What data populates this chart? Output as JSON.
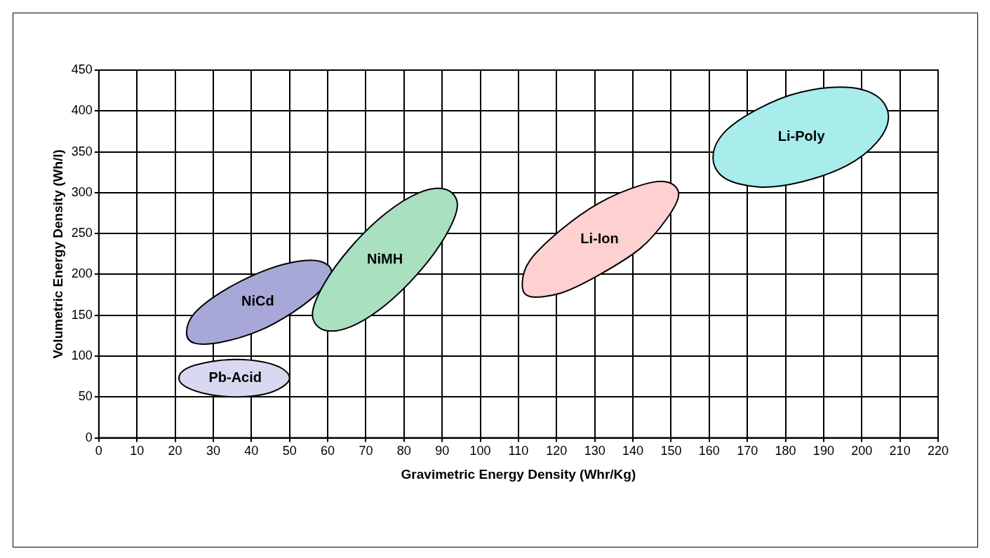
{
  "chart_data": {
    "type": "area",
    "xlabel": "Gravimetric Energy Density (Whr/Kg)",
    "ylabel": "Volumetric Energy Density (Wh/l)",
    "xlim": [
      0,
      220
    ],
    "xticks": [
      0,
      10,
      20,
      30,
      40,
      50,
      60,
      70,
      80,
      90,
      100,
      110,
      120,
      130,
      140,
      150,
      160,
      170,
      180,
      190,
      200,
      210,
      220
    ],
    "ylim": [
      0,
      450
    ],
    "yticks": [
      0,
      50,
      100,
      150,
      200,
      250,
      300,
      350,
      400,
      450
    ],
    "grid": true,
    "legend": false,
    "marker": "none",
    "series": [
      {
        "name": "Pb-Acid",
        "color": "#d8d8f0",
        "x": [
          50,
          48,
          43,
          36,
          29,
          23,
          21,
          23,
          29,
          36,
          43,
          48
        ],
        "values": [
          73,
          85,
          93,
          96,
          93,
          85,
          73,
          62,
          53,
          50,
          53,
          62
        ]
      },
      {
        "name": "NiCd",
        "color": "#a8a8d8",
        "x": [
          61,
          58,
          51,
          42,
          32,
          25,
          23,
          25,
          32,
          42,
          51,
          58
        ],
        "values": [
          203,
          180,
          154,
          131,
          117,
          116,
          129,
          152,
          178,
          202,
          215,
          216
        ]
      },
      {
        "name": "NiMH",
        "color": "#a8e0c0",
        "x": [
          94,
          91,
          84,
          75,
          66,
          59,
          56,
          59,
          66,
          75,
          84,
          91
        ],
        "values": [
          285,
          248,
          203,
          162,
          136,
          132,
          151,
          188,
          233,
          274,
          300,
          304
        ]
      },
      {
        "name": "Li-Ion",
        "color": "#ffd0d0",
        "x": [
          152,
          149,
          142,
          131,
          121,
          113,
          111,
          113,
          121,
          131,
          142,
          149
        ],
        "values": [
          298,
          269,
          232,
          199,
          177,
          173,
          188,
          217,
          254,
          287,
          309,
          313
        ]
      },
      {
        "name": "Li-Poly",
        "color": "#a8ecec",
        "x": [
          207,
          204,
          196,
          184,
          173,
          164,
          161,
          164,
          173,
          184,
          196,
          204
        ],
        "values": [
          393,
          362,
          333,
          313,
          307,
          318,
          343,
          374,
          403,
          423,
          429,
          418
        ]
      }
    ]
  }
}
